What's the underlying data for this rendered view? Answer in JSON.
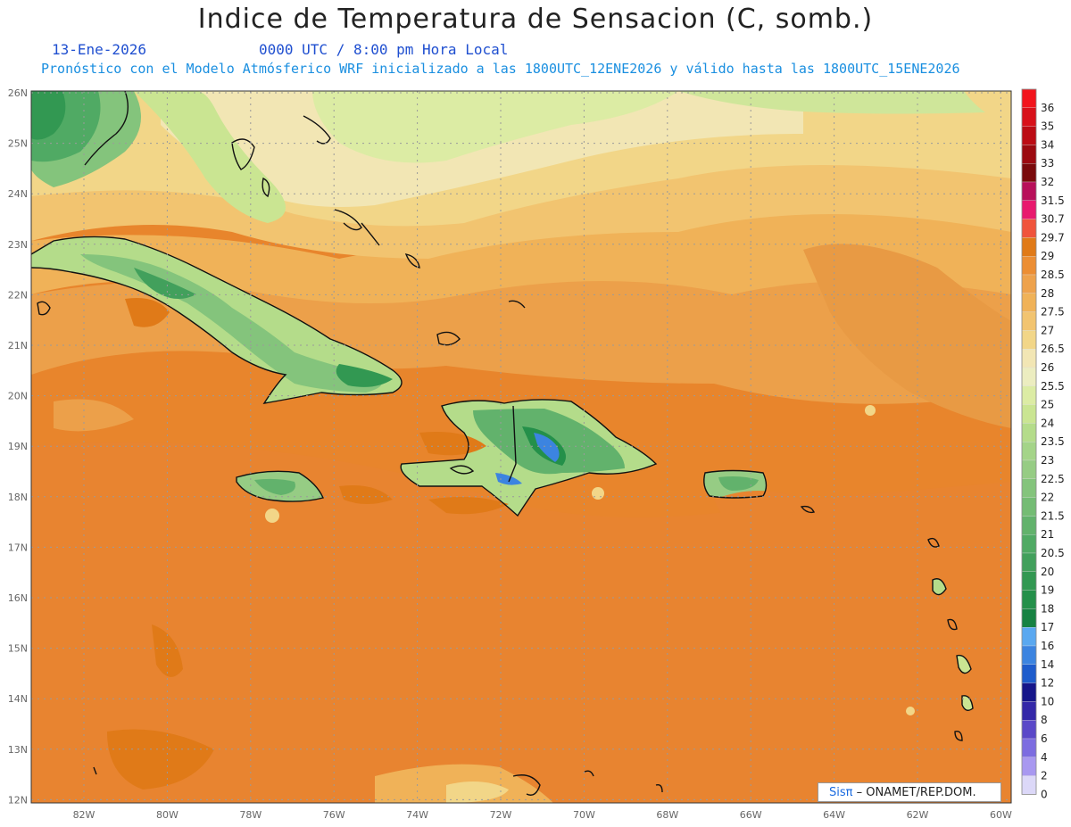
{
  "title": "Indice de Temperatura de Sensacion (C, somb.)",
  "date": "13-Ene-2026",
  "time": "0000 UTC / 8:00 pm Hora Local",
  "forecast_info": "Pronóstico con el Modelo Atmósferico WRF inicializado a las 1800UTC_12ENE2026 y válido hasta las  1800UTC_15ENE2026",
  "credit": {
    "brand": "Sisπ",
    "text": "– ONAMET/REP.DOM."
  },
  "lat_labels": [
    "26N",
    "25N",
    "24N",
    "23N",
    "22N",
    "21N",
    "20N",
    "19N",
    "18N",
    "17N",
    "16N",
    "15N",
    "14N",
    "13N",
    "12N"
  ],
  "lon_labels": [
    "82W",
    "80W",
    "78W",
    "76W",
    "74W",
    "72W",
    "70W",
    "68W",
    "66W",
    "64W",
    "62W",
    "60W"
  ],
  "legend": [
    {
      "label": "36",
      "color": "#f2141c"
    },
    {
      "label": "35",
      "color": "#d8111a"
    },
    {
      "label": "34",
      "color": "#bc0c14"
    },
    {
      "label": "33",
      "color": "#9c0a10"
    },
    {
      "label": "32",
      "color": "#7a0a0c"
    },
    {
      "label": "31.5",
      "color": "#b8105a"
    },
    {
      "label": "30.7",
      "color": "#e8196e"
    },
    {
      "label": "29.7",
      "color": "#f0543c"
    },
    {
      "label": "29",
      "color": "#e07a18"
    },
    {
      "label": "28.5",
      "color": "#ec8e34"
    },
    {
      "label": "28",
      "color": "#eea24c"
    },
    {
      "label": "27.5",
      "color": "#f0b258"
    },
    {
      "label": "27",
      "color": "#f2c470"
    },
    {
      "label": "26.5",
      "color": "#f2d688"
    },
    {
      "label": "26",
      "color": "#f2e6b4"
    },
    {
      "label": "25.5",
      "color": "#ecedc0"
    },
    {
      "label": "25",
      "color": "#dceca4"
    },
    {
      "label": "24",
      "color": "#cae592"
    },
    {
      "label": "23.5",
      "color": "#b4dc8a"
    },
    {
      "label": "23",
      "color": "#a4d488"
    },
    {
      "label": "22.5",
      "color": "#96cc84"
    },
    {
      "label": "22",
      "color": "#84c47c"
    },
    {
      "label": "21.5",
      "color": "#74bc74"
    },
    {
      "label": "21",
      "color": "#62b26c"
    },
    {
      "label": "20.5",
      "color": "#50aa64"
    },
    {
      "label": "20",
      "color": "#42a05c"
    },
    {
      "label": "19",
      "color": "#329852"
    },
    {
      "label": "18",
      "color": "#24904a"
    },
    {
      "label": "17",
      "color": "#178242"
    },
    {
      "label": "16",
      "color": "#5aa8f0"
    },
    {
      "label": "14",
      "color": "#3c84e0"
    },
    {
      "label": "12",
      "color": "#1e5ccc"
    },
    {
      "label": "10",
      "color": "#16168a"
    },
    {
      "label": "8",
      "color": "#3428a8"
    },
    {
      "label": "6",
      "color": "#5a48c8"
    },
    {
      "label": "4",
      "color": "#7c6ce0"
    },
    {
      "label": "2",
      "color": "#a898f0"
    },
    {
      "label": "0",
      "color": "#dcd8f8"
    }
  ],
  "colors": {
    "sea_base": "#e8852c",
    "land_outline": "#111111",
    "grid": "#a8a8a8"
  }
}
